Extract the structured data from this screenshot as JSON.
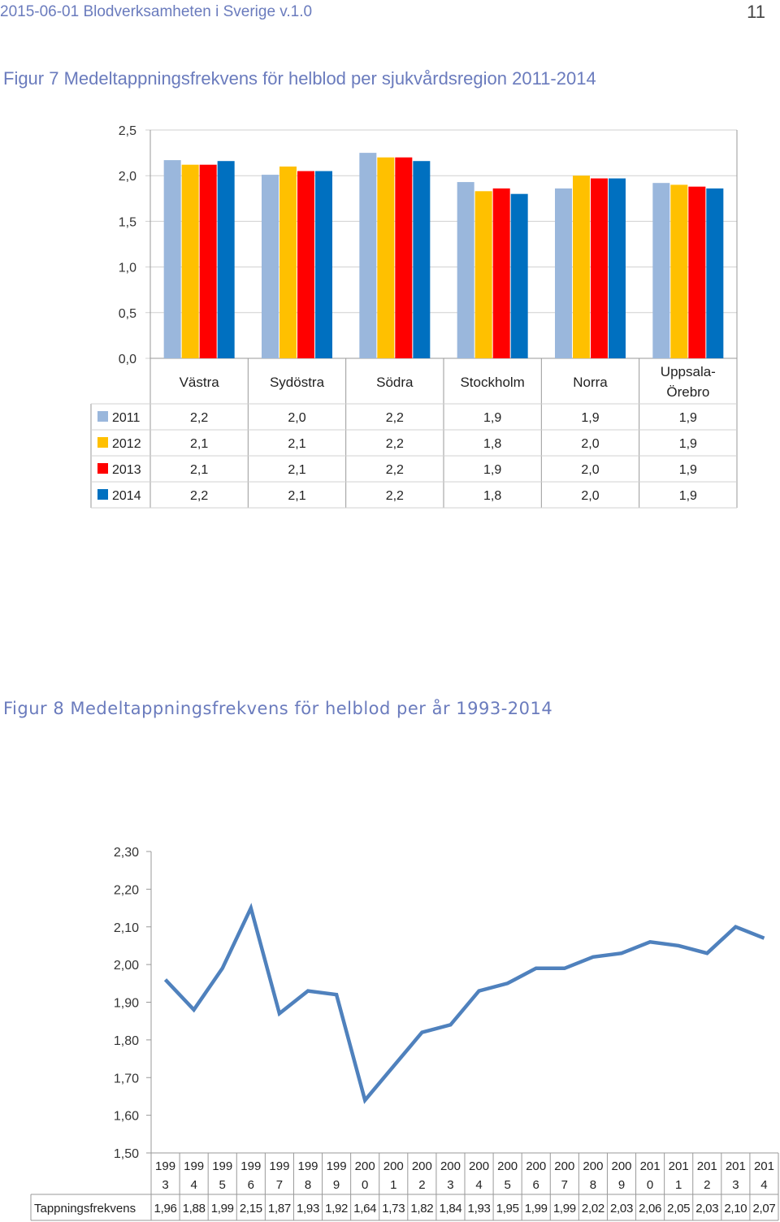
{
  "header": {
    "left": "2015-06-01 Blodverksamheten i Sverige v.1.0",
    "page_number": "11"
  },
  "colors": {
    "s2011": "#9ab7dc",
    "s2012": "#ffc000",
    "s2013": "#ff0000",
    "s2014": "#0070c0",
    "line": "#4f81bd",
    "axis": "#999999",
    "grid": "#d0d0d0"
  },
  "chart_data": [
    {
      "type": "bar",
      "title": "Figur 7 Medeltappningsfrekvens för helblod per sjukvårdsregion 2011-2014",
      "categories": [
        "Västra",
        "Sydöstra",
        "Södra",
        "Stockholm",
        "Norra",
        "Uppsala-Örebro"
      ],
      "category_lines": [
        [
          "Västra"
        ],
        [
          "Sydöstra"
        ],
        [
          "Södra"
        ],
        [
          "Stockholm"
        ],
        [
          "Norra"
        ],
        [
          "Uppsala-",
          "Örebro"
        ]
      ],
      "series": [
        {
          "name": "2011",
          "values": [
            2.17,
            2.01,
            2.25,
            1.93,
            1.86,
            1.92
          ],
          "labels": [
            "2,2",
            "2,0",
            "2,2",
            "1,9",
            "1,9",
            "1,9"
          ]
        },
        {
          "name": "2012",
          "values": [
            2.12,
            2.1,
            2.2,
            1.83,
            2.0,
            1.9
          ],
          "labels": [
            "2,1",
            "2,1",
            "2,2",
            "1,8",
            "2,0",
            "1,9"
          ]
        },
        {
          "name": "2013",
          "values": [
            2.12,
            2.05,
            2.2,
            1.86,
            1.97,
            1.88
          ],
          "labels": [
            "2,1",
            "2,1",
            "2,2",
            "1,9",
            "2,0",
            "1,9"
          ]
        },
        {
          "name": "2014",
          "values": [
            2.16,
            2.05,
            2.16,
            1.8,
            1.97,
            1.86
          ],
          "labels": [
            "2,2",
            "2,1",
            "2,2",
            "1,8",
            "2,0",
            "1,9"
          ]
        }
      ],
      "y_ticks": [
        "0,0",
        "0,5",
        "1,0",
        "1,5",
        "2,0",
        "2,5"
      ],
      "ylim": [
        0,
        2.5
      ],
      "grid": true,
      "legend": "data table"
    },
    {
      "type": "line",
      "title": "Figur 8 Medeltappningsfrekvens för helblod per år 1993-2014",
      "x": [
        "1993",
        "1994",
        "1995",
        "1996",
        "1997",
        "1998",
        "1999",
        "2000",
        "2001",
        "2002",
        "2003",
        "2004",
        "2005",
        "2006",
        "2007",
        "2008",
        "2009",
        "2010",
        "2011",
        "2012",
        "2013",
        "2014"
      ],
      "x_lines": [
        [
          "199",
          "3"
        ],
        [
          "199",
          "4"
        ],
        [
          "199",
          "5"
        ],
        [
          "199",
          "6"
        ],
        [
          "199",
          "7"
        ],
        [
          "199",
          "8"
        ],
        [
          "199",
          "9"
        ],
        [
          "200",
          "0"
        ],
        [
          "200",
          "1"
        ],
        [
          "200",
          "2"
        ],
        [
          "200",
          "3"
        ],
        [
          "200",
          "4"
        ],
        [
          "200",
          "5"
        ],
        [
          "200",
          "6"
        ],
        [
          "200",
          "7"
        ],
        [
          "200",
          "8"
        ],
        [
          "200",
          "9"
        ],
        [
          "201",
          "0"
        ],
        [
          "201",
          "1"
        ],
        [
          "201",
          "2"
        ],
        [
          "201",
          "3"
        ],
        [
          "201",
          "4"
        ]
      ],
      "series": [
        {
          "name": "Tappningsfrekvens",
          "values": [
            1.96,
            1.88,
            1.99,
            2.15,
            1.87,
            1.93,
            1.92,
            1.64,
            1.73,
            1.82,
            1.84,
            1.93,
            1.95,
            1.99,
            1.99,
            2.02,
            2.03,
            2.06,
            2.05,
            2.03,
            2.1,
            2.07
          ],
          "labels": [
            "1,96",
            "1,88",
            "1,99",
            "2,15",
            "1,87",
            "1,93",
            "1,92",
            "1,64",
            "1,73",
            "1,82",
            "1,84",
            "1,93",
            "1,95",
            "1,99",
            "1,99",
            "2,02",
            "2,03",
            "2,06",
            "2,05",
            "2,03",
            "2,10",
            "2,07"
          ]
        }
      ],
      "y_ticks": [
        "1,50",
        "1,60",
        "1,70",
        "1,80",
        "1,90",
        "2,00",
        "2,10",
        "2,20",
        "2,30"
      ],
      "ylim": [
        1.5,
        2.3
      ],
      "grid": false,
      "legend": "data table"
    }
  ]
}
